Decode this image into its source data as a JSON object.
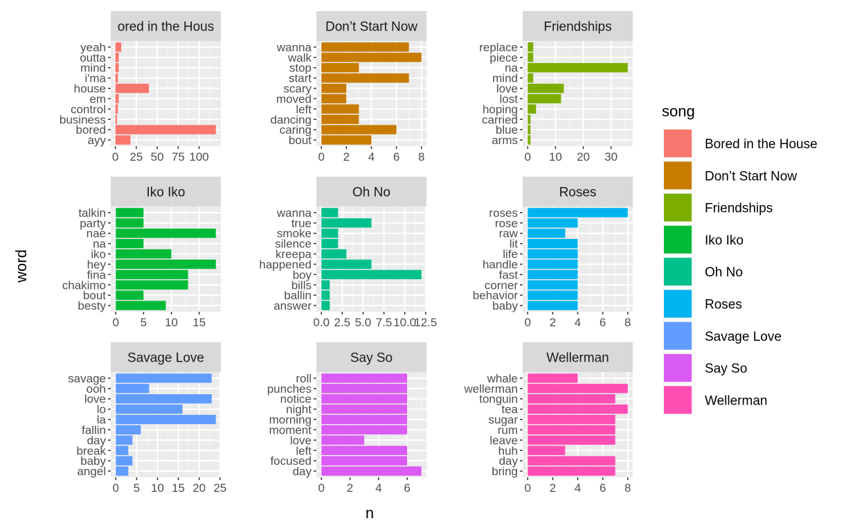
{
  "chart_data": {
    "type": "bar",
    "orientation": "horizontal",
    "facet_by": "song",
    "xlabel": "n",
    "ylabel": "word",
    "legend": {
      "title": "song",
      "placement": "right",
      "entries": [
        {
          "label": "Bored in the House",
          "color": "#F8766D"
        },
        {
          "label": "Don’t Start Now",
          "color": "#C77C00"
        },
        {
          "label": "Friendships",
          "color": "#7CAE00"
        },
        {
          "label": "Iko Iko",
          "color": "#00BA38"
        },
        {
          "label": "Oh No",
          "color": "#00C08B"
        },
        {
          "label": "Roses",
          "color": "#00B4EF"
        },
        {
          "label": "Savage Love",
          "color": "#619CFF"
        },
        {
          "label": "Say So",
          "color": "#DB5BF5"
        },
        {
          "label": "Wellerman",
          "color": "#FF4FB4"
        }
      ]
    },
    "grid": true,
    "panels": [
      {
        "title": "Bored in the House",
        "title_display": "ored in the Hous",
        "color": "#F8766D",
        "words": [
          "ayy",
          "bored",
          "business",
          "control",
          "em",
          "house",
          "i'ma",
          "mind",
          "outta",
          "yeah"
        ],
        "values": [
          18,
          120,
          2,
          3,
          4,
          40,
          3,
          4,
          4,
          7
        ],
        "xlim": [
          -5.5,
          126
        ],
        "xticks": [
          0,
          25,
          50,
          75,
          100
        ],
        "xtick_labels": [
          "0",
          "25",
          "50",
          "75",
          "100"
        ]
      },
      {
        "title": "Don’t Start Now",
        "title_display": "Don’t Start Now",
        "color": "#C77C00",
        "words": [
          "bout",
          "caring",
          "dancing",
          "left",
          "moved",
          "scary",
          "start",
          "stop",
          "walk",
          "wanna"
        ],
        "values": [
          4,
          6,
          3,
          3,
          2,
          2,
          7,
          3,
          8,
          7
        ],
        "xlim": [
          -0.4,
          8.4
        ],
        "xticks": [
          0,
          2,
          4,
          6,
          8
        ],
        "xtick_labels": [
          "0",
          "2",
          "4",
          "6",
          "8"
        ]
      },
      {
        "title": "Friendships",
        "title_display": "Friendships",
        "color": "#7CAE00",
        "words": [
          "arms",
          "blue",
          "carried",
          "hoping",
          "lost",
          "love",
          "mind",
          "na",
          "piece",
          "replace"
        ],
        "values": [
          1,
          1,
          1,
          3,
          12,
          13,
          2,
          36,
          2,
          2
        ],
        "xlim": [
          -1.8,
          37.8
        ],
        "xticks": [
          0,
          10,
          20,
          30
        ],
        "xtick_labels": [
          "0",
          "10",
          "20",
          "30"
        ]
      },
      {
        "title": "Iko Iko",
        "title_display": "Iko Iko",
        "color": "#00BA38",
        "words": [
          "besty",
          "bout",
          "chakimo",
          "fina",
          "hey",
          "iko",
          "na",
          "nae",
          "party",
          "talkin"
        ],
        "values": [
          9,
          5,
          13,
          13,
          18,
          10,
          5,
          18,
          5,
          5
        ],
        "xlim": [
          -0.9,
          18.9
        ],
        "xticks": [
          0,
          5,
          10,
          15
        ],
        "xtick_labels": [
          "0",
          "5",
          "10",
          "15"
        ]
      },
      {
        "title": "Oh No",
        "title_display": "Oh No",
        "color": "#00C08B",
        "words": [
          "answer",
          "ballin",
          "bills",
          "boy",
          "happened",
          "kreepa",
          "silence",
          "smoke",
          "true",
          "wanna"
        ],
        "values": [
          1,
          1,
          1,
          12,
          6,
          3,
          2,
          2,
          6,
          2
        ],
        "xlim": [
          -0.6,
          12.6
        ],
        "xticks": [
          0,
          2.5,
          5,
          7.5,
          10,
          12.5
        ],
        "xtick_labels": [
          "0.0",
          "2.5",
          "5.0",
          "7.5",
          "10.0",
          "12.5"
        ]
      },
      {
        "title": "Roses",
        "title_display": "Roses",
        "color": "#00B4EF",
        "words": [
          "baby",
          "behavior",
          "corner",
          "fast",
          "handle",
          "life",
          "lit",
          "raw",
          "rose",
          "roses"
        ],
        "values": [
          4,
          4,
          4,
          4,
          4,
          4,
          4,
          3,
          4,
          8
        ],
        "xlim": [
          -0.4,
          8.4
        ],
        "xticks": [
          0,
          2,
          4,
          6,
          8
        ],
        "xtick_labels": [
          "0",
          "2",
          "4",
          "6",
          "8"
        ]
      },
      {
        "title": "Savage Love",
        "title_display": "Savage Love",
        "color": "#619CFF",
        "words": [
          "angel",
          "baby",
          "break",
          "day",
          "fallin",
          "la",
          "lo",
          "love",
          "ooh",
          "savage"
        ],
        "values": [
          3,
          4,
          3,
          4,
          6,
          24,
          16,
          23,
          8,
          23
        ],
        "xlim": [
          -1.2,
          25.2
        ],
        "xticks": [
          0,
          5,
          10,
          15,
          20,
          25
        ],
        "xtick_labels": [
          "0",
          "5",
          "10",
          "15",
          "20",
          "25"
        ]
      },
      {
        "title": "Say So",
        "title_display": "Say So",
        "color": "#DB5BF5",
        "words": [
          "day",
          "focused",
          "left",
          "love",
          "moment",
          "morning",
          "night",
          "notice",
          "punches",
          "roll"
        ],
        "values": [
          7,
          6,
          6,
          3,
          6,
          6,
          6,
          6,
          6,
          6
        ],
        "xlim": [
          -0.35,
          7.35
        ],
        "xticks": [
          0,
          2,
          4,
          6
        ],
        "xtick_labels": [
          "0",
          "2",
          "4",
          "6"
        ]
      },
      {
        "title": "Wellerman",
        "title_display": "Wellerman",
        "color": "#FF4FB4",
        "words": [
          "bring",
          "day",
          "huh",
          "leave",
          "rum",
          "sugar",
          "tea",
          "tonguin",
          "wellerman",
          "whale"
        ],
        "values": [
          7,
          7,
          3,
          7,
          7,
          7,
          8,
          7,
          8,
          4
        ],
        "xlim": [
          -0.4,
          8.4
        ],
        "xticks": [
          0,
          2,
          4,
          6,
          8
        ],
        "xtick_labels": [
          "0",
          "2",
          "4",
          "6",
          "8"
        ]
      }
    ]
  }
}
